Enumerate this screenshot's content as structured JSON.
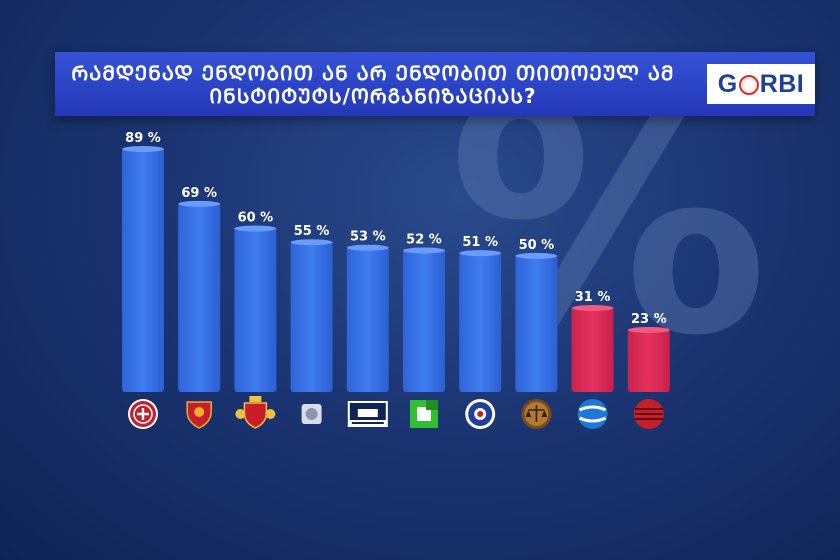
{
  "header": {
    "title": "ᲠᲐᲛᲓᲔᲜᲐᲓ ᲔᲜᲓᲝᲑᲘᲗ ᲐᲜ ᲐᲠ ᲔᲜᲓᲝᲑᲘᲗ ᲗᲘᲗᲝᲔᲣᲚ ᲐᲛ ᲘᲜᲡᲢᲘᲢᲣᲢᲡ/ᲝᲠᲒᲐᲜᲘᲖᲐᲪᲘᲐᲡ?",
    "logo": "GORBI",
    "background_symbol": "%"
  },
  "colors": {
    "positive_bar": "#3f7df0",
    "negative_bar": "#e5325f",
    "title_bar": "#2a40c4"
  },
  "chart_data": {
    "type": "bar",
    "title": "ᲠᲐᲛᲓᲔᲜᲐᲓ ᲔᲜᲓᲝᲑᲘᲗ ᲐᲜ ᲐᲠ ᲔᲜᲓᲝᲑᲘᲗ ᲗᲘᲗᲝᲔᲣᲚ ᲐᲛ ᲘᲜᲡᲢᲘᲢᲣᲢᲡ/ᲝᲠᲒᲐᲜᲘᲖᲐᲪᲘᲐᲡ?",
    "xlabel": "",
    "ylabel": "",
    "ylim": [
      0,
      100
    ],
    "grid": false,
    "values": [
      89,
      69,
      60,
      55,
      53,
      52,
      51,
      50,
      31,
      23
    ],
    "labels": [
      "89 %",
      "69 %",
      "60 %",
      "55 %",
      "53 %",
      "52 %",
      "51 %",
      "50 %",
      "31 %",
      "23 %"
    ],
    "bar_colors": [
      "blue",
      "blue",
      "blue",
      "blue",
      "blue",
      "blue",
      "blue",
      "blue",
      "red",
      "red"
    ],
    "category_icons": [
      "church-cross-emblem-icon",
      "army-emblem-icon",
      "state-coat-of-arms-icon",
      "ombudsman-emblem-icon",
      "parliament-building-icon",
      "green-logo-icon",
      "police-emblem-icon",
      "justice-scales-icon",
      "media-logo-icon",
      "red-striped-globe-icon"
    ]
  }
}
